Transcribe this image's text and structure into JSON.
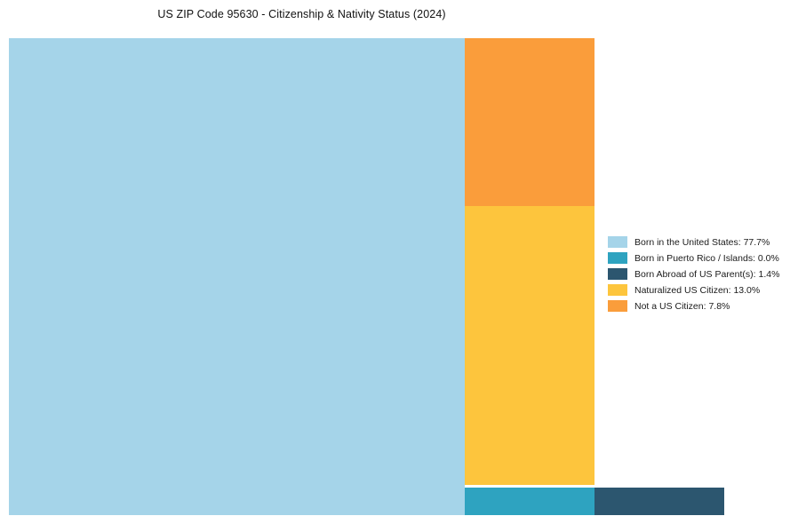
{
  "chart_data": {
    "type": "treemap",
    "title": "US ZIP Code 95630 - Citizenship & Nativity Status (2024)",
    "categories": [
      "Born in the United States",
      "Born in Puerto Rico / Islands",
      "Born Abroad of US Parent(s)",
      "Naturalized US Citizen",
      "Not a US Citizen"
    ],
    "values": [
      77.7,
      0.0,
      1.4,
      13.0,
      7.8
    ],
    "colors": [
      "#A5D4E9",
      "#2EA3C0",
      "#2C566F",
      "#FDC53D",
      "#FA9D3B"
    ],
    "legend_position": "right",
    "grid": false,
    "legend": [
      {
        "label": "Born in the United States: 77.7%",
        "color": "#A5D4E9"
      },
      {
        "label": "Born in Puerto Rico / Islands: 0.0%",
        "color": "#2EA3C0"
      },
      {
        "label": "Born Abroad of US Parent(s): 1.4%",
        "color": "#2C566F"
      },
      {
        "label": "Naturalized US Citizen: 13.0%",
        "color": "#FDC53D"
      },
      {
        "label": "Not a US Citizen: 7.8%",
        "color": "#FA9D3B"
      }
    ]
  }
}
